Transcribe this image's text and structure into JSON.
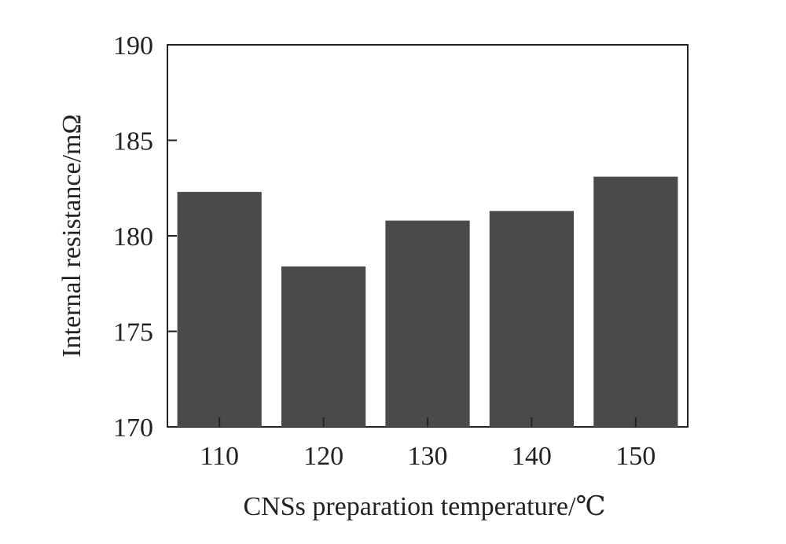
{
  "chart_data": {
    "type": "bar",
    "title": "",
    "xlabel": "CNSs preparation temperature/℃",
    "ylabel": "Internal resistance/mΩ",
    "categories": [
      "110",
      "120",
      "130",
      "140",
      "150"
    ],
    "values": [
      182.3,
      178.4,
      180.8,
      181.3,
      183.1
    ],
    "ylim": [
      170,
      190
    ],
    "yticks": [
      "170",
      "175",
      "180",
      "185",
      "190"
    ],
    "grid": false,
    "legend": "none",
    "bar_color": "#4a4a4a"
  }
}
